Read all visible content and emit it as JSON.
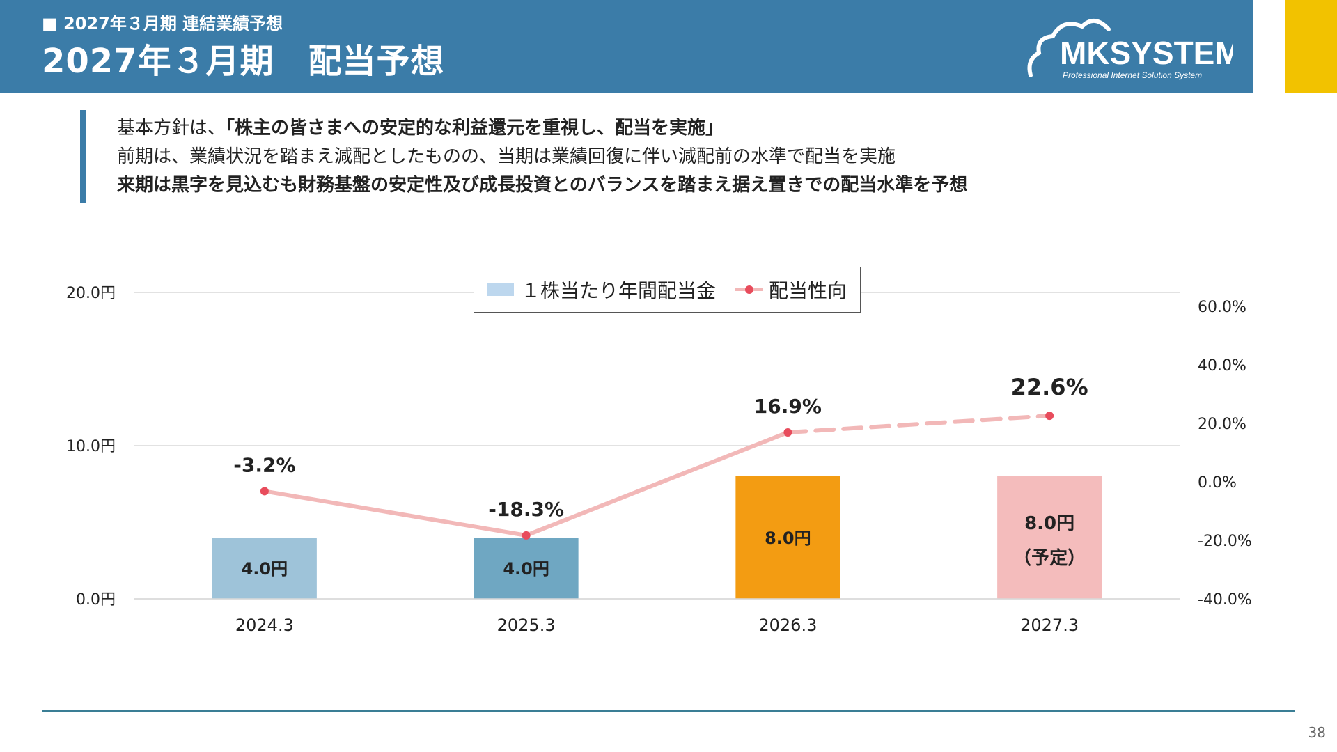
{
  "header": {
    "subtitle": "■ 2027年３月期 連結業績予想",
    "title": "2027年３月期　配当予想",
    "logo_text": "MKSYSTEM",
    "logo_tagline": "Professional Internet Solution System"
  },
  "policy": {
    "line1_prefix": "基本方針は、",
    "line1_bold": "「株主の皆さまへの安定的な利益還元を重視し、配当を実施」",
    "line2": "前期は、業績状況を踏まえ減配としたものの、当期は業績回復に伴い減配前の水準で配当を実施",
    "line3": "来期は黒字を見込むも財務基盤の安定性及び成長投資とのバランスを踏まえ据え置きでの配当水準を予想"
  },
  "colors": {
    "header": "#3b7ca8",
    "accent": "#f2c200",
    "bars": [
      "#9ec3d9",
      "#6fa7c2",
      "#f39c12",
      "#f4bcbc"
    ],
    "line": "#f2b8b8",
    "marker": "#e84c5c"
  },
  "chart_data": {
    "type": "bar",
    "categories": [
      "2024.3",
      "2025.3",
      "2026.3",
      "2027.3"
    ],
    "series": [
      {
        "name": "１株当たり年間配当金",
        "type": "bar",
        "axis": "left",
        "values": [
          4.0,
          4.0,
          8.0,
          8.0
        ],
        "labels": [
          "4.0円",
          "4.0円",
          "8.0円",
          "8.0円"
        ],
        "label_notes": [
          "",
          "",
          "",
          "（予定）"
        ]
      },
      {
        "name": "配当性向",
        "type": "line",
        "axis": "right",
        "values": [
          -3.2,
          -18.3,
          16.9,
          22.6
        ],
        "labels": [
          "-3.2%",
          "-18.3%",
          "16.9%",
          "22.6%"
        ]
      }
    ],
    "y_left": {
      "ylim": [
        0,
        20
      ],
      "ticks": [
        0,
        10,
        20
      ],
      "tick_labels": [
        "0.0円",
        "10.0円",
        "20.0円"
      ]
    },
    "y_right": {
      "ylim": [
        -40,
        60
      ],
      "ticks": [
        -40,
        -20,
        0,
        20,
        40,
        60
      ],
      "tick_labels": [
        "-40.0%",
        "-20.0%",
        "0.0%",
        "20.0%",
        "40.0%",
        "60.0%"
      ]
    },
    "grid": true,
    "legend_position": "top-center"
  },
  "page_number": "38"
}
